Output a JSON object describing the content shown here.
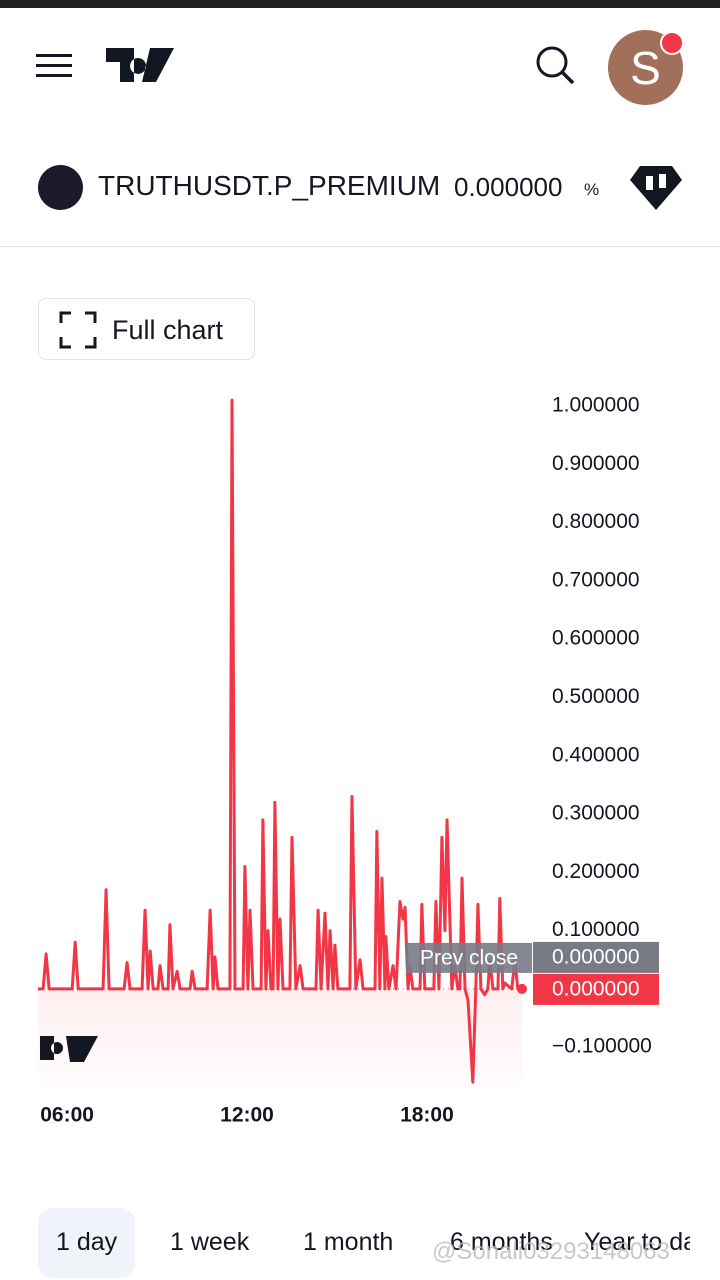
{
  "header": {
    "avatar_letter": "S"
  },
  "symbol": {
    "name": "TRUTHUSDT.P_PREMIUM",
    "change": "0.000000",
    "unit": "%"
  },
  "full_chart_button": "Full chart",
  "chart_data": {
    "type": "line",
    "color": "#f23645",
    "x": [
      5.03,
      5.2,
      5.3,
      5.4,
      6.17,
      6.27,
      6.37,
      7.2,
      7.3,
      7.4,
      7.9,
      8.0,
      8.1,
      8.5,
      8.6,
      8.7,
      8.77,
      8.87,
      9.03,
      9.1,
      9.2,
      9.37,
      9.43,
      9.53,
      9.67,
      9.77,
      10.1,
      10.17,
      10.27,
      10.67,
      10.77,
      10.87,
      10.93,
      11.03,
      11.43,
      11.5,
      11.6,
      11.87,
      11.93,
      12.03,
      12.1,
      12.2,
      12.47,
      12.53,
      12.63,
      12.7,
      12.8,
      12.87,
      12.93,
      13.03,
      13.1,
      13.2,
      13.43,
      13.5,
      13.63,
      13.77,
      13.87,
      14.3,
      14.37,
      14.47,
      14.6,
      14.7,
      14.77,
      14.87,
      14.93,
      15.03,
      15.43,
      15.5,
      15.63,
      15.77,
      15.87,
      16.27,
      16.33,
      16.43,
      16.5,
      16.6,
      16.63,
      16.73,
      16.87,
      16.97,
      17.1,
      17.2,
      17.27,
      17.37,
      17.43,
      17.53,
      17.77,
      17.83,
      17.93,
      18.23,
      18.3,
      18.4,
      18.5,
      18.6,
      18.67,
      18.83,
      18.93,
      19.03,
      19.1,
      19.17,
      19.27,
      19.37,
      19.53,
      19.63,
      19.7,
      19.8,
      19.93,
      20.03,
      20.1,
      20.2,
      20.37,
      20.43,
      20.53,
      20.6,
      20.83,
      20.93,
      21.03,
      21.17
    ],
    "values": [
      0,
      0,
      0.06,
      0,
      0,
      0.08,
      0,
      0,
      0.17,
      0,
      0,
      0.045,
      0,
      0,
      0.135,
      0,
      0.065,
      0,
      0,
      0.04,
      0,
      0,
      0.11,
      0,
      0.03,
      0,
      0,
      0.03,
      0,
      0,
      0.135,
      0,
      0.055,
      0,
      0,
      1.01,
      0,
      0,
      0.21,
      0,
      0.135,
      0,
      0,
      0.29,
      0,
      0.1,
      0,
      0,
      0.32,
      0,
      0.12,
      0,
      0,
      0.26,
      0,
      0.04,
      0,
      0,
      0.135,
      0,
      0.13,
      0,
      0.1,
      0,
      0.075,
      0,
      0,
      0.33,
      0,
      0.05,
      0,
      0,
      0.27,
      0,
      0.19,
      0,
      0.09,
      0,
      0.04,
      0,
      0.15,
      0.12,
      0.14,
      0,
      0.04,
      0,
      0,
      0.145,
      0,
      0,
      0.15,
      0,
      0.26,
      0.1,
      0.29,
      0,
      0.04,
      0,
      0,
      0.19,
      0,
      -0.02,
      -0.16,
      0,
      0.145,
      0,
      -0.01,
      0,
      0.05,
      0,
      0,
      0.155,
      0,
      0.01,
      0,
      0.05,
      0,
      0
    ],
    "xlim": [
      5.03,
      21.17
    ],
    "ylim": [
      -0.17,
      1.03
    ],
    "xticks": [
      {
        "value": 6,
        "label": "06:00"
      },
      {
        "value": 12,
        "label": "12:00"
      },
      {
        "value": 18,
        "label": "18:00"
      }
    ],
    "yticks": [
      {
        "value": 1,
        "label": "1.000000"
      },
      {
        "value": 0.9,
        "label": "0.900000"
      },
      {
        "value": 0.8,
        "label": "0.800000"
      },
      {
        "value": 0.7,
        "label": "0.700000"
      },
      {
        "value": 0.6,
        "label": "0.600000"
      },
      {
        "value": 0.5,
        "label": "0.500000"
      },
      {
        "value": 0.4,
        "label": "0.400000"
      },
      {
        "value": 0.3,
        "label": "0.300000"
      },
      {
        "value": 0.2,
        "label": "0.200000"
      },
      {
        "value": 0.1,
        "label": "0.100000"
      },
      {
        "value": -0.1,
        "label": "−0.100000"
      }
    ],
    "prev_close": {
      "name": "Prev close",
      "value": 0,
      "label": "0.000000"
    },
    "last_value": {
      "value": 0,
      "label": "0.000000"
    }
  },
  "periods": [
    "1 day",
    "1 week",
    "1 month",
    "6 months",
    "Year to date"
  ],
  "watermark": "@Sonali03293148063"
}
